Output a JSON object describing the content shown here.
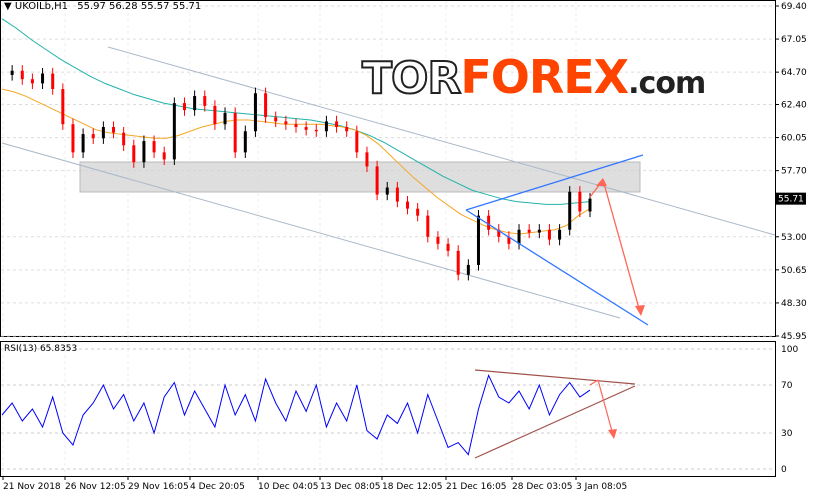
{
  "header": {
    "symbol": "UKOILb,H1",
    "ohlc": "55.97 56.28 55.57 55.71"
  },
  "logo": {
    "part1": "TOR",
    "part2": "FOREX",
    "part3": ".com"
  },
  "rsi": {
    "label": "RSI(13) 65.8353"
  },
  "colors": {
    "up": "#000000",
    "down": "#ff0000",
    "ma_fast": "#f5a623",
    "ma_slow": "#20b2aa",
    "rsi": "#0000ff",
    "trend": "#3377ff",
    "arrow": "#ff6655",
    "channel": "#aab8c8",
    "zone": "#d0d0d0"
  },
  "chart_data": [
    {
      "type": "line",
      "name": "price",
      "y_ticks": [
        "69.40",
        "67.05",
        "64.70",
        "62.40",
        "60.05",
        "57.70",
        "53.00",
        "50.65",
        "48.30",
        "45.95"
      ],
      "ylim": [
        45.95,
        69.4
      ],
      "current_price": "55.71",
      "x_ticks": [
        "21 Nov 2018",
        "26 Nov 12:05",
        "29 Nov 16:05",
        "4 Dec 20:05",
        "10 Dec 04:05",
        "13 Dec 08:05",
        "18 Dec 12:05",
        "21 Dec 16:05",
        "28 Dec 03:05",
        "3 Jan 08:05"
      ],
      "close": [
        64.5,
        64.8,
        64.2,
        63.9,
        64.6,
        63.5,
        61.0,
        59.0,
        60.3,
        60.0,
        60.8,
        60.4,
        59.5,
        58.3,
        59.8,
        59.0,
        58.5,
        62.5,
        62.0,
        63.0,
        62.3,
        61.0,
        61.8,
        59.0,
        60.5,
        63.2,
        61.5,
        61.2,
        61.0,
        60.8,
        60.6,
        60.5,
        61.2,
        60.8,
        60.5,
        59.0,
        58.0,
        56.0,
        56.5,
        55.5,
        55.0,
        54.5,
        53.0,
        52.5,
        52.0,
        50.3,
        51.0,
        54.5,
        53.5,
        53.0,
        52.5,
        53.5,
        53.3,
        53.5,
        52.8,
        53.5,
        56.2,
        54.8,
        55.71
      ],
      "ma_fast": [
        63.5,
        63.3,
        63.0,
        62.6,
        62.2,
        61.8,
        61.4,
        61.0,
        60.6,
        60.4,
        60.3,
        60.2,
        60.1,
        60.0,
        60.0,
        60.2,
        60.5,
        60.8,
        61.0,
        61.2,
        61.3,
        61.3,
        61.2,
        61.1,
        61.0,
        61.0,
        61.0,
        61.0,
        60.9,
        60.8,
        60.6,
        60.2,
        59.6,
        58.8,
        58.0,
        57.2,
        56.5,
        55.8,
        55.2,
        54.6,
        54.2,
        53.8,
        53.5,
        53.3,
        53.2,
        53.3,
        53.4,
        53.5,
        53.8,
        54.5,
        55.0
      ],
      "ma_slow": [
        68.5,
        67.8,
        67.0,
        66.3,
        65.6,
        65.0,
        64.4,
        63.9,
        63.5,
        63.1,
        62.8,
        62.5,
        62.3,
        62.1,
        62.0,
        61.9,
        61.8,
        61.7,
        61.6,
        61.5,
        61.4,
        61.3,
        61.1,
        60.9,
        60.6,
        60.2,
        59.7,
        59.1,
        58.5,
        57.9,
        57.3,
        56.8,
        56.3,
        56.0,
        55.7,
        55.5,
        55.4,
        55.3,
        55.3,
        55.4,
        55.5
      ]
    },
    {
      "type": "line",
      "name": "RSI(13)",
      "ylim": [
        0,
        100
      ],
      "y_ticks": [
        "100",
        "70",
        "30",
        "0"
      ],
      "values": [
        45,
        55,
        40,
        50,
        35,
        60,
        30,
        20,
        45,
        55,
        70,
        50,
        62,
        40,
        55,
        30,
        60,
        72,
        45,
        65,
        50,
        35,
        70,
        45,
        62,
        40,
        75,
        55,
        40,
        65,
        48,
        70,
        35,
        55,
        40,
        70,
        32,
        25,
        45,
        38,
        55,
        30,
        62,
        40,
        18,
        22,
        12,
        50,
        78,
        60,
        55,
        65,
        50,
        70,
        45,
        62,
        72,
        60,
        65.8
      ]
    }
  ]
}
